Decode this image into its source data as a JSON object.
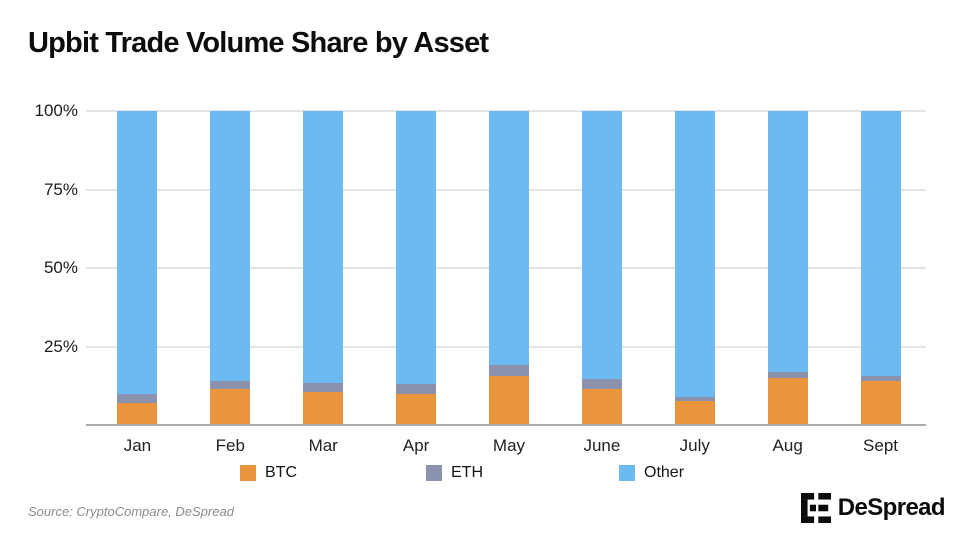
{
  "title": "Upbit Trade Volume Share by Asset",
  "chart_data": {
    "type": "bar",
    "stacked": true,
    "title": "Upbit Trade Volume Share by Asset",
    "xlabel": "",
    "ylabel": "",
    "ylim": [
      0,
      100
    ],
    "grid": true,
    "legend_position": "bottom",
    "categories": [
      "Jan",
      "Feb",
      "Mar",
      "Apr",
      "May",
      "June",
      "July",
      "Aug",
      "Sept"
    ],
    "y_ticks": [
      {
        "label": "100%",
        "value": 100
      },
      {
        "label": "75%",
        "value": 75
      },
      {
        "label": "50%",
        "value": 50
      },
      {
        "label": "25%",
        "value": 25
      }
    ],
    "series": [
      {
        "name": "BTC",
        "color": "#E8953D",
        "values": [
          7,
          11.5,
          10.5,
          10,
          15.5,
          11.5,
          7.5,
          15,
          14
        ]
      },
      {
        "name": "ETH",
        "color": "#8A92AE",
        "values": [
          3,
          2.5,
          3,
          3,
          3.5,
          3,
          1.5,
          2,
          1.5
        ]
      },
      {
        "name": "Other",
        "color": "#6CBAF1",
        "values": [
          90,
          86,
          86.5,
          87,
          81,
          85.5,
          91,
          83,
          84.5
        ]
      }
    ]
  },
  "legend": {
    "items": [
      {
        "label": "BTC",
        "color": "#E8953D"
      },
      {
        "label": "ETH",
        "color": "#8A92AE"
      },
      {
        "label": "Other",
        "color": "#6CBAF1"
      }
    ]
  },
  "footer": {
    "source": "Source: CryptoCompare, DeSpread",
    "brand": "DeSpread",
    "brand_icon": "despread-bracket-logo"
  },
  "colors": {
    "background": "#FFFFFF",
    "gridline": "#E4E4E4",
    "axis_line": "#ABABAB",
    "title_text": "#0D0D0D",
    "tick_text": "#1C1C1C",
    "source_text": "#8C8C8C"
  }
}
